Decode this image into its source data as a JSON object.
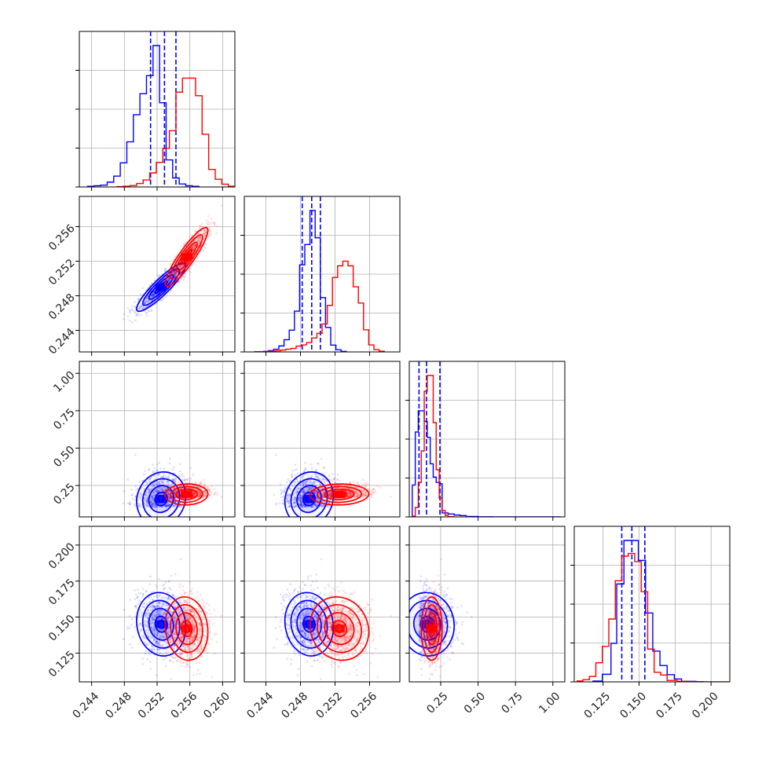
{
  "chart_data": {
    "type": "corner",
    "grid": true,
    "params": [
      {
        "lim": [
          0.2425,
          0.2615
        ],
        "ticks": [
          0.244,
          0.248,
          0.252,
          0.256,
          0.26
        ],
        "tick_labels": [
          "0.244",
          "0.248",
          "0.252",
          "0.256",
          "0.260"
        ]
      },
      {
        "lim": [
          0.2415,
          0.2595
        ],
        "ticks": [
          0.244,
          0.248,
          0.252,
          0.256
        ],
        "tick_labels": [
          "0.244",
          "0.248",
          "0.252",
          "0.256"
        ]
      },
      {
        "lim": [
          0.04,
          1.08
        ],
        "ticks": [
          0.25,
          0.5,
          0.75,
          1.0
        ],
        "tick_labels": [
          "0.25",
          "0.50",
          "0.75",
          "1.00"
        ]
      },
      {
        "lim": [
          0.105,
          0.213
        ],
        "ticks": [
          0.125,
          0.15,
          0.175,
          0.2
        ],
        "tick_labels": [
          "0.125",
          "0.150",
          "0.175",
          "0.200"
        ]
      }
    ],
    "series": [
      {
        "name": "",
        "color": "#0000ff",
        "means": [
          0.2525,
          0.249,
          0.16,
          0.145
        ],
        "sds": [
          0.0015,
          0.0014,
          0.09,
          0.011
        ],
        "corr": [
          [
            1,
            0.9,
            0.1,
            -0.1
          ],
          [
            0.9,
            1,
            0.1,
            -0.1
          ],
          [
            0.1,
            0.1,
            1,
            -0.05
          ],
          [
            -0.1,
            -0.1,
            -0.05,
            1
          ]
        ],
        "quantile_lines": [
          [
            0.2512,
            0.2529,
            0.2543
          ],
          [
            0.2482,
            0.2493,
            0.2503
          ],
          [
            0.105,
            0.155,
            0.245
          ],
          [
            0.138,
            0.145,
            0.154
          ]
        ],
        "histograms": [
          {
            "edges": [
              0.2435,
              0.2443,
              0.2451,
              0.2459,
              0.2467,
              0.2475,
              0.2483,
              0.2491,
              0.2499,
              0.2507,
              0.2515,
              0.2523,
              0.2531,
              0.2539,
              0.2547,
              0.2555,
              0.2563,
              0.2571
            ],
            "counts": [
              1,
              2,
              3,
              8,
              18,
              40,
              75,
              120,
              155,
              185,
              235,
              140,
              45,
              15,
              5,
              2,
              1
            ]
          },
          {
            "edges": [
              0.2437,
              0.2443,
              0.2449,
              0.2455,
              0.2461,
              0.2467,
              0.2473,
              0.2479,
              0.2485,
              0.2491,
              0.2497,
              0.2503,
              0.2509,
              0.2515,
              0.2521,
              0.2527,
              0.2533
            ],
            "counts": [
              2,
              5,
              10,
              22,
              45,
              80,
              150,
              320,
              395,
              520,
              420,
              200,
              90,
              25,
              8,
              2
            ]
          },
          {
            "edges": [
              0.06,
              0.08,
              0.1,
              0.12,
              0.14,
              0.16,
              0.18,
              0.2,
              0.22,
              0.24,
              0.26,
              0.3,
              0.34,
              0.38,
              0.42,
              0.5,
              0.6,
              0.8,
              1.05
            ],
            "counts": [
              120,
              320,
              400,
              400,
              360,
              300,
              200,
              150,
              130,
              125,
              30,
              22,
              14,
              10,
              6,
              3,
              2,
              1
            ]
          },
          {
            "edges": [
              0.118,
              0.1245,
              0.1305,
              0.1345,
              0.1395,
              0.1445,
              0.1495,
              0.1545,
              0.1595,
              0.1645,
              0.1695,
              0.1745,
              0.1795,
              0.1895
            ],
            "counts": [
              3,
              25,
              85,
              270,
              390,
              390,
              335,
              190,
              85,
              45,
              20,
              8,
              3
            ]
          }
        ]
      },
      {
        "name": "",
        "color": "#ff0000",
        "means": [
          0.2556,
          0.2525,
          0.19,
          0.142
        ],
        "sds": [
          0.0013,
          0.0017,
          0.035,
          0.011
        ],
        "corr": [
          [
            1,
            0.9,
            0.05,
            -0.1
          ],
          [
            0.9,
            1,
            0.05,
            -0.1
          ],
          [
            0.05,
            0.05,
            1,
            0
          ],
          [
            -0.1,
            -0.1,
            0,
            1
          ]
        ],
        "quantile_lines": [],
        "histograms": [
          {
            "edges": [
              0.2471,
              0.2479,
              0.2487,
              0.2495,
              0.2503,
              0.2511,
              0.2519,
              0.2527,
              0.2535,
              0.2543,
              0.2551,
              0.2559,
              0.2567,
              0.2575,
              0.2583,
              0.2591,
              0.2599,
              0.2607,
              0.2615
            ],
            "counts": [
              1,
              2,
              4,
              10,
              20,
              40,
              70,
              110,
              160,
              270,
              310,
              310,
              260,
              150,
              50,
              22,
              8,
              2
            ]
          },
          {
            "edges": [
              0.2427,
              0.2433,
              0.2439,
              0.2445,
              0.2451,
              0.2457,
              0.2463,
              0.2469,
              0.2475,
              0.2481,
              0.2487,
              0.2493,
              0.2499,
              0.2505,
              0.2511,
              0.2517,
              0.2523,
              0.2529,
              0.2535,
              0.2541,
              0.2547,
              0.2553,
              0.2559,
              0.2565,
              0.2571,
              0.2577
            ],
            "counts": [
              1,
              1,
              2,
              3,
              5,
              8,
              12,
              15,
              25,
              30,
              40,
              60,
              80,
              120,
              200,
              320,
              370,
              390,
              370,
              280,
              210,
              95,
              30,
              10,
              3
            ]
          },
          {
            "edges": [
              0.06,
              0.08,
              0.1,
              0.12,
              0.14,
              0.16,
              0.18,
              0.2,
              0.22,
              0.24,
              0.26,
              0.28,
              0.3,
              0.34
            ],
            "counts": [
              5,
              60,
              220,
              420,
              800,
              900,
              900,
              600,
              300,
              120,
              40,
              10,
              3
            ]
          },
          {
            "edges": [
              0.107,
              0.111,
              0.1155,
              0.12,
              0.1245,
              0.129,
              0.1335,
              0.138,
              0.1425,
              0.147,
              0.1515,
              0.156,
              0.1605,
              0.165,
              0.1695,
              0.1765,
              0.185,
              0.195,
              0.2125
            ],
            "counts": [
              3,
              8,
              20,
              70,
              130,
              230,
              370,
              460,
              470,
              440,
              330,
              120,
              35,
              25,
              8,
              4,
              2,
              1
            ]
          }
        ]
      }
    ]
  }
}
